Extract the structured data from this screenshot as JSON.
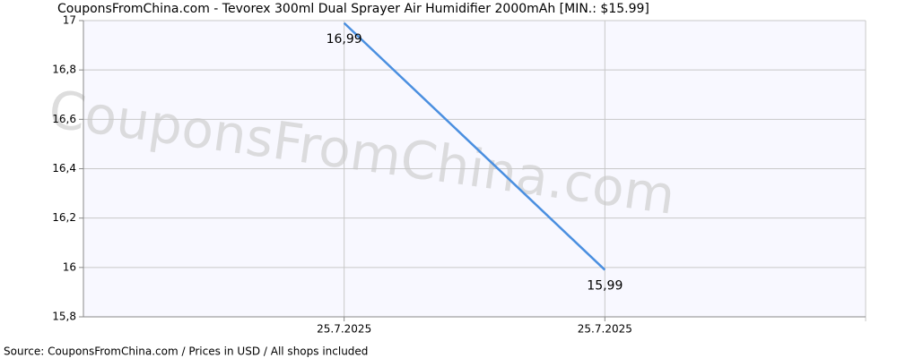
{
  "chart_data": {
    "type": "line",
    "title": "CouponsFromChina.com - Tevorex 300ml Dual Sprayer Air Humidifier 2000mAh [MIN.: $15.99]",
    "watermark": "CouponsFromChina.com",
    "source": "Source: CouponsFromChina.com / Prices in USD / All shops included",
    "categories": [
      "25.7.2025",
      "25.7.2025"
    ],
    "values": [
      16.99,
      15.99
    ],
    "value_labels": [
      "16,99",
      "15,99"
    ],
    "color": "#4a8fe0",
    "ylim": [
      15.8,
      17
    ],
    "yticks": [
      {
        "value": 15.8,
        "label": "15,8"
      },
      16,
      {
        "value": 16.2,
        "label": "16,2"
      },
      {
        "value": 16.4,
        "label": "16,4"
      },
      {
        "value": 16.6,
        "label": "16,6"
      },
      {
        "value": 16.8,
        "label": "16,8"
      },
      17
    ],
    "grid": true
  }
}
